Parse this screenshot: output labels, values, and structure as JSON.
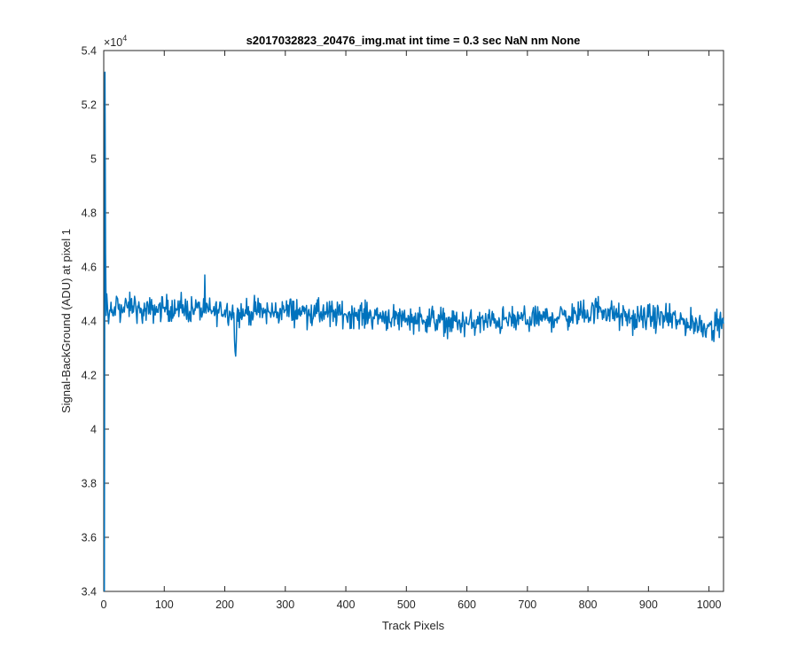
{
  "chart_data": {
    "type": "line",
    "title": "s2017032823_20476_img.mat int time = 0.3 sec  NaN nm None",
    "xlabel": "Track Pixels",
    "ylabel": "Signal-BackGround (ADU) at pixel 1",
    "xlim": [
      0,
      1024
    ],
    "ylim": [
      34000,
      54000
    ],
    "y_exponent_label": "×10",
    "y_exponent_power": "4",
    "x_ticks": [
      0,
      100,
      200,
      300,
      400,
      500,
      600,
      700,
      800,
      900,
      1000
    ],
    "x_tick_labels": [
      "0",
      "100",
      "200",
      "300",
      "400",
      "500",
      "600",
      "700",
      "800",
      "900",
      "1000"
    ],
    "y_ticks": [
      34000,
      36000,
      38000,
      40000,
      42000,
      44000,
      46000,
      48000,
      50000,
      52000,
      54000
    ],
    "y_tick_labels": [
      "3.4",
      "3.6",
      "3.8",
      "4",
      "4.2",
      "4.4",
      "4.6",
      "4.8",
      "5",
      "5.2",
      "5.4"
    ],
    "grid": false,
    "line_color": "#0072BD",
    "series": [
      {
        "x": [
          1,
          2,
          3,
          4,
          5,
          6,
          8,
          10,
          15,
          20,
          30,
          40,
          50,
          60,
          80,
          100,
          120,
          150,
          180,
          200,
          215,
          218,
          220,
          225,
          250,
          275,
          300,
          350,
          400,
          450,
          500,
          550,
          600,
          650,
          700,
          750,
          800,
          820,
          850,
          880,
          900,
          950,
          1000,
          1024
        ],
        "values": [
          34000,
          53200,
          46500,
          44200,
          45000,
          44600,
          43900,
          44400,
          44200,
          44600,
          44400,
          44500,
          44600,
          44300,
          44400,
          44500,
          44400,
          44450,
          44350,
          44400,
          44300,
          42700,
          44200,
          44300,
          44350,
          44300,
          44400,
          44300,
          44250,
          44200,
          44100,
          44050,
          43900,
          44000,
          44050,
          44150,
          44250,
          44500,
          44150,
          44050,
          44150,
          44000,
          43800,
          43900
        ]
      }
    ]
  }
}
